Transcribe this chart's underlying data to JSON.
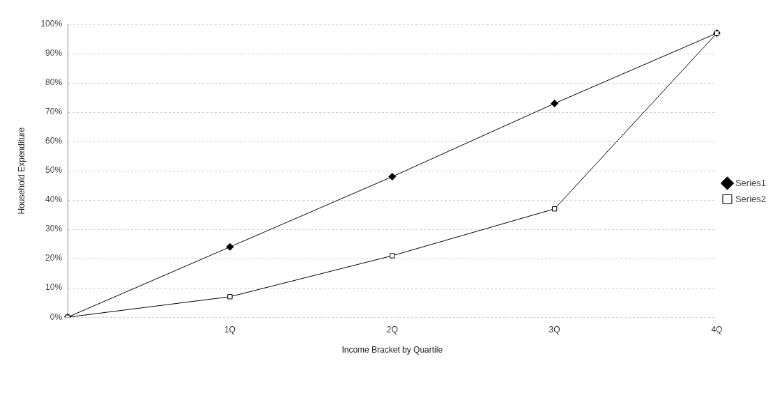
{
  "chart_data": {
    "type": "line",
    "xlabel": "Income Bracket by Quartile",
    "ylabel": "Household Expenditure",
    "categories": [
      null,
      "1Q",
      "2Q",
      "3Q",
      "4Q"
    ],
    "series": [
      {
        "name": "Series1",
        "color": "#000000",
        "marker": "diamond",
        "values": [
          0,
          24,
          48,
          73,
          97
        ]
      },
      {
        "name": "Series2",
        "color": "#000000",
        "marker": "square",
        "values": [
          0,
          7,
          21,
          37,
          97
        ]
      }
    ],
    "ylim": [
      0,
      100
    ],
    "yticks": [
      {
        "value": 0,
        "label": "0%"
      },
      {
        "value": 10,
        "label": "10%"
      },
      {
        "value": 20,
        "label": "20%"
      },
      {
        "value": 30,
        "label": "30%"
      },
      {
        "value": 40,
        "label": "40%"
      },
      {
        "value": 50,
        "label": "50%"
      },
      {
        "value": 60,
        "label": "60%"
      },
      {
        "value": 70,
        "label": "70%"
      },
      {
        "value": 80,
        "label": "80%"
      },
      {
        "value": 90,
        "label": "90%"
      },
      {
        "value": 100,
        "label": "100%"
      }
    ],
    "grid": "y",
    "legend": "right",
    "line_style": "solid"
  }
}
